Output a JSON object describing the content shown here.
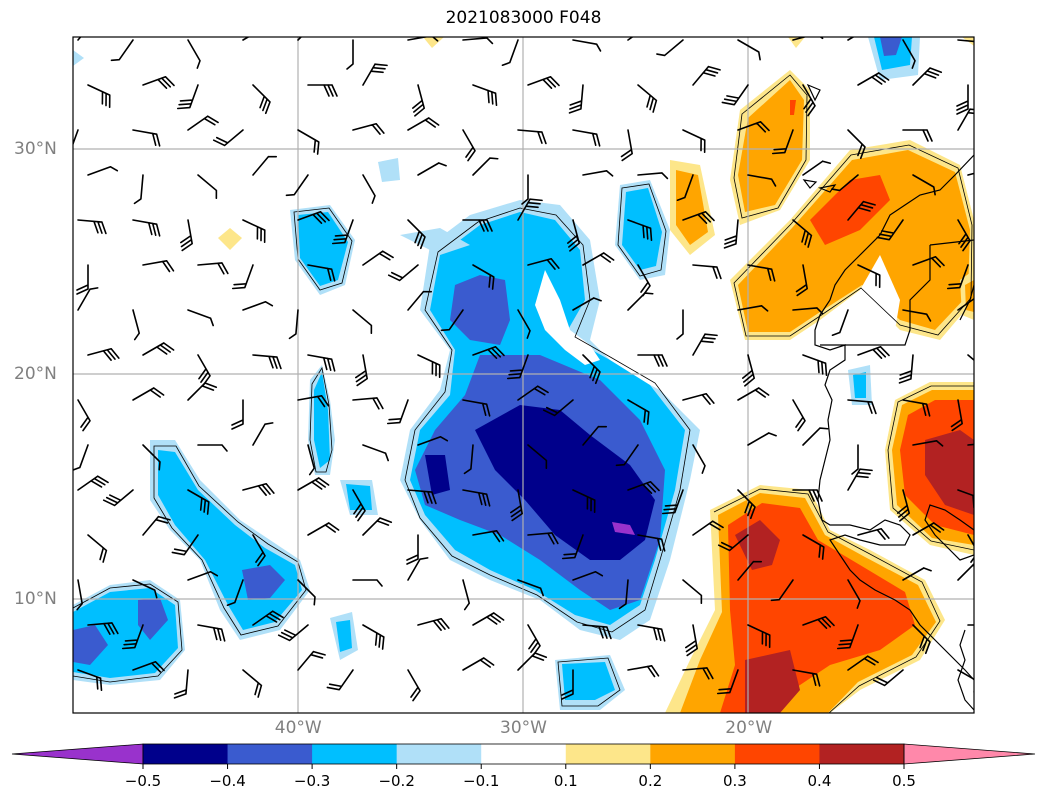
{
  "title": "2021083000 F048",
  "map": {
    "lat_labels": [
      {
        "text": "30°N",
        "lat": 30
      },
      {
        "text": "20°N",
        "lat": 20
      },
      {
        "text": "10°N",
        "lat": 10
      }
    ],
    "lon_labels": [
      {
        "text": "40°W",
        "lon": -40
      },
      {
        "text": "30°W",
        "lon": -30
      },
      {
        "text": "20°W",
        "lon": -20
      }
    ],
    "extent": {
      "lon_min": -50,
      "lon_max": -10,
      "lat_min": 5,
      "lat_max": 35
    }
  },
  "colorbar": {
    "ticks": [
      "−0.5",
      "−0.4",
      "−0.3",
      "−0.2",
      "−0.1",
      "0.1",
      "0.2",
      "0.3",
      "0.4",
      "0.5"
    ],
    "colors": [
      "#9932cc",
      "#00008b",
      "#3a5bcf",
      "#00bfff",
      "#b0e0f8",
      "#ffffff",
      "#fde68a",
      "#ffa500",
      "#ff4500",
      "#b22222",
      "#ff88aa"
    ]
  }
}
